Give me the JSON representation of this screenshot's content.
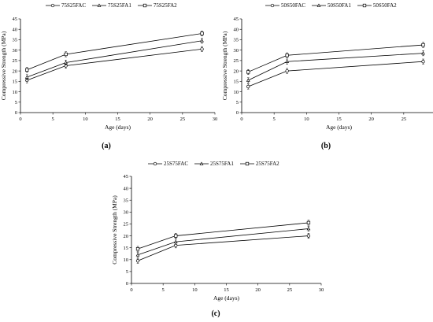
{
  "panels": [
    {
      "caption": "(a)",
      "chart_data": {
        "type": "line",
        "xlabel": "Age (days)",
        "ylabel": "Compressive Strength (MPa)",
        "xlim": [
          0,
          30
        ],
        "ylim": [
          0,
          45
        ],
        "xticks": [
          "0",
          "5",
          "10",
          "15",
          "20",
          "25",
          "30"
        ],
        "yticks": [
          "0",
          "5",
          "10",
          "15",
          "20",
          "25",
          "30",
          "35",
          "40",
          "45"
        ],
        "legend_position": "top",
        "x": [
          1,
          7,
          28
        ],
        "series": [
          {
            "name": "75S25FAC",
            "marker": "circle",
            "values": [
              15.5,
              22.5,
              30.5
            ]
          },
          {
            "name": "75S25FA1",
            "marker": "triangle",
            "values": [
              17.0,
              24.0,
              34.5
            ]
          },
          {
            "name": "75S25FA2",
            "marker": "square",
            "values": [
              20.5,
              28.0,
              38.0
            ]
          }
        ]
      }
    },
    {
      "caption": "(b)",
      "chart_data": {
        "type": "line",
        "xlabel": "Age (days)",
        "ylabel": "Compressive Strength (MPa)",
        "xlim": [
          0,
          30
        ],
        "ylim": [
          0,
          45
        ],
        "xticks": [
          "0",
          "5",
          "10",
          "15",
          "20",
          "25",
          "30"
        ],
        "yticks": [
          "0",
          "5",
          "10",
          "15",
          "20",
          "25",
          "30",
          "35",
          "40",
          "45"
        ],
        "legend_position": "top",
        "x": [
          1,
          7,
          28
        ],
        "series": [
          {
            "name": "50S50FAC",
            "marker": "circle",
            "values": [
              12.5,
              20.0,
              24.5
            ]
          },
          {
            "name": "50S50FA1",
            "marker": "triangle",
            "values": [
              15.5,
              24.5,
              28.5
            ]
          },
          {
            "name": "50S50FA2",
            "marker": "square",
            "values": [
              19.5,
              27.5,
              32.5
            ]
          }
        ]
      }
    },
    {
      "caption": "(c)",
      "chart_data": {
        "type": "line",
        "xlabel": "Age (days)",
        "ylabel": "Compressive Strength (MPa)",
        "xlim": [
          0,
          30
        ],
        "ylim": [
          0,
          45
        ],
        "xticks": [
          "0",
          "5",
          "10",
          "15",
          "20",
          "25",
          "30"
        ],
        "yticks": [
          "0",
          "5",
          "10",
          "15",
          "20",
          "25",
          "30",
          "35",
          "40",
          "45"
        ],
        "legend_position": "top",
        "x": [
          1,
          7,
          28
        ],
        "series": [
          {
            "name": "25S75FAC",
            "marker": "circle",
            "values": [
              9.5,
              16.0,
              20.0
            ]
          },
          {
            "name": "25S75FA1",
            "marker": "triangle",
            "values": [
              12.0,
              17.5,
              23.0
            ]
          },
          {
            "name": "25S75FA2",
            "marker": "square",
            "values": [
              14.5,
              20.0,
              25.5
            ]
          }
        ]
      }
    }
  ]
}
